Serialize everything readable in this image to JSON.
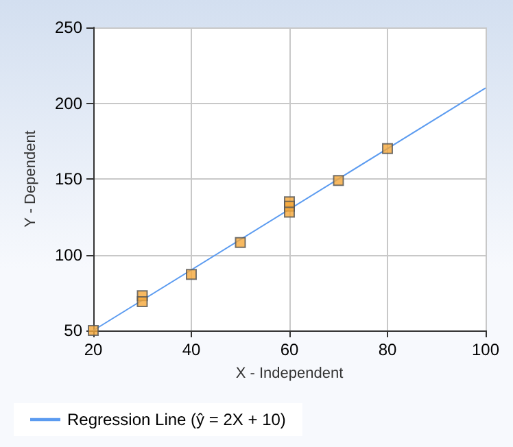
{
  "chart_data": {
    "type": "scatter",
    "xlabel": "X - Independent",
    "ylabel": "Y - Dependent",
    "xlim": [
      20,
      100
    ],
    "xticks": [
      20,
      40,
      60,
      80,
      100
    ],
    "ylim": [
      50,
      250
    ],
    "yticks": [
      50,
      100,
      150,
      200,
      250
    ],
    "grid": true,
    "legend": "bottom left",
    "marker": "square",
    "series": [
      {
        "color": "#f5a83a",
        "x": [
          20,
          30,
          30,
          40,
          50,
          60,
          60,
          60,
          70,
          80
        ],
        "values": [
          50,
          73,
          69,
          87,
          108,
          135,
          132,
          128,
          149,
          170
        ]
      },
      {
        "type": "line",
        "name": "Regression Line (ŷ = 2X + 10)",
        "color": "#5b9bf0",
        "x": [
          20,
          100
        ],
        "values": [
          50,
          210
        ],
        "marker": "none",
        "line_style": "solid"
      }
    ]
  }
}
